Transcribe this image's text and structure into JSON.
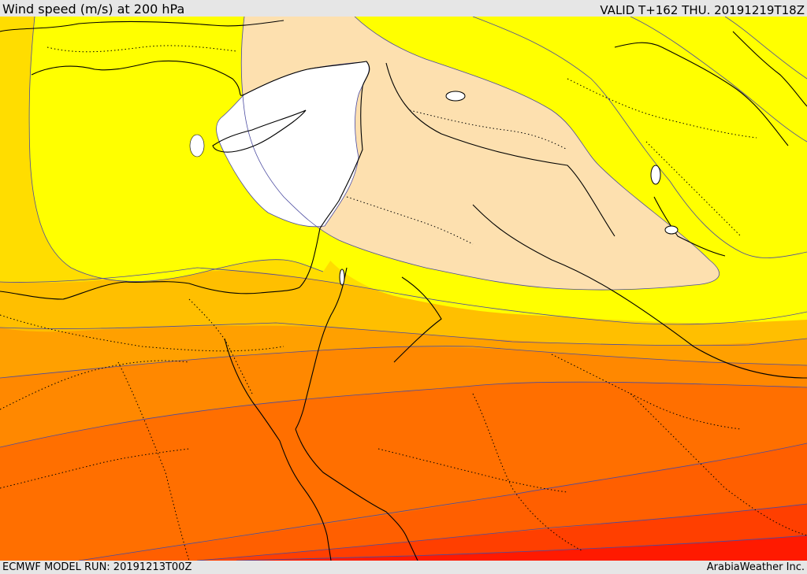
{
  "header": {
    "title": "Wind speed (m/s) at 200 hPa",
    "valid": "VALID T+162 THU. 20191219T18Z"
  },
  "footer": {
    "model_run": "ECMWF MODEL RUN: 20191213T00Z",
    "credit": "ArabiaWeather Inc."
  },
  "map": {
    "variable": "wind speed at 200 hPa",
    "units": "m/s",
    "shading_colors": {
      "lowest": "#ffffff",
      "band_1": "#fde0af",
      "band_2": "#ffff00",
      "band_3": "#ffde00",
      "band_4": "#ffbf00",
      "band_5": "#ff9f00",
      "band_6": "#ff7f00",
      "band_7": "#ff5f00",
      "band_8": "#ff3f00",
      "band_9": "#ff1a00"
    },
    "contour_color": "#4a4aa0",
    "coastline_color": "#000000",
    "border_style": "dotted"
  }
}
